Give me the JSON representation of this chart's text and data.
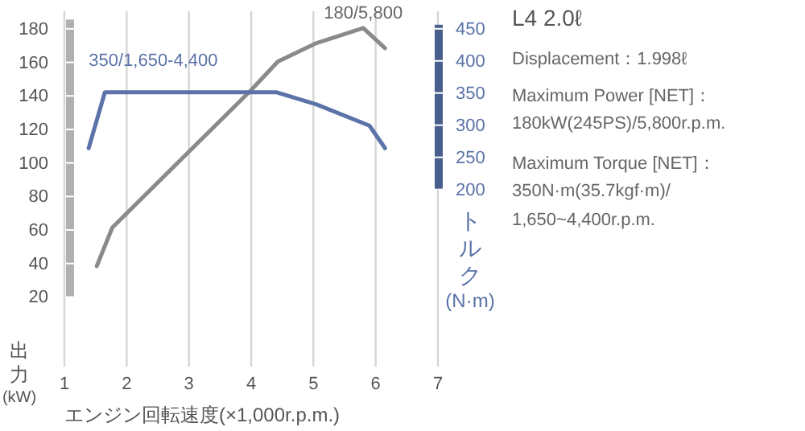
{
  "chart_data": {
    "type": "line",
    "title": "L4 2.0ℓ",
    "xlabel": "エンジン回転速度(×1,000r.p.m.)",
    "ylabel": "出力(kW)",
    "y2label": "トルク(N·m)",
    "series": [
      {
        "color": "#8a8a8a",
        "x": [
          1.52,
          1.77,
          4.0,
          4.43,
          5.05,
          5.3,
          5.8,
          6.15
        ],
        "values": [
          38,
          61,
          143,
          160,
          171,
          174,
          180,
          168
        ]
      },
      {
        "color": "#5b73a8",
        "axis": "y2",
        "x": [
          1.39,
          1.65,
          4.4,
          5.05,
          5.9,
          6.15
        ],
        "values": [
          263,
          350,
          350,
          331,
          298,
          263
        ]
      }
    ],
    "xlim": [
      1,
      7
    ],
    "xticks": [
      1,
      2,
      3,
      4,
      5,
      6,
      7
    ],
    "ylim": [
      -22,
      190
    ],
    "yticks": [
      20,
      40,
      60,
      80,
      100,
      120,
      140,
      160,
      180
    ],
    "y2lim": [
      -77,
      476
    ],
    "y2ticks": [
      200,
      250,
      300,
      350,
      400,
      450
    ],
    "grid": "x",
    "annotations": [
      {
        "text": "180/5,800",
        "x": 5.8,
        "y": 180
      },
      "350/1,650-4,400",
      "Displacement：1.998ℓ",
      "Maximum Power [NET]：",
      "180kW(245PS)/5,800r.p.m.",
      "Maximum Torque [NET]：",
      "350N·m(35.7kgf·m)/",
      "1,650~4,400r.p.m."
    ]
  }
}
